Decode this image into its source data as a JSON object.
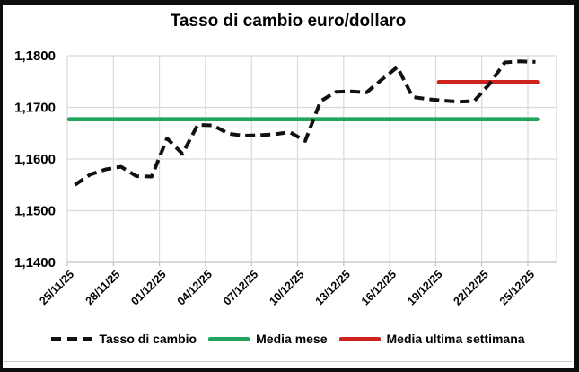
{
  "chart": {
    "title": "Tasso di cambio euro/dollaro"
  },
  "chart_data": {
    "type": "line",
    "title": "Tasso di cambio euro/dollaro",
    "xlabel": "",
    "ylabel": "",
    "ylim": [
      1.14,
      1.18
    ],
    "grid": true,
    "legend_position": "bottom",
    "dates": [
      "25/11/25",
      "26/11/25",
      "27/11/25",
      "28/11/25",
      "29/11/25",
      "30/11/25",
      "01/12/25",
      "02/12/25",
      "03/12/25",
      "04/12/25",
      "05/12/25",
      "06/12/25",
      "07/12/25",
      "08/12/25",
      "09/12/25",
      "10/12/25",
      "11/12/25",
      "12/12/25",
      "13/12/25",
      "14/12/25",
      "15/12/25",
      "16/12/25",
      "17/12/25",
      "18/12/25",
      "19/12/25",
      "20/12/25",
      "21/12/25",
      "22/12/25",
      "23/12/25",
      "24/12/25",
      "25/12/25"
    ],
    "x_tick_labels": [
      "25/11/25",
      "28/11/25",
      "01/12/25",
      "04/12/25",
      "07/12/25",
      "10/12/25",
      "13/12/25",
      "16/12/25",
      "19/12/25",
      "22/12/25",
      "25/12/25"
    ],
    "y_tick_labels": [
      "1,1800",
      "1,1700",
      "1,1600",
      "1,1500",
      "1,1400"
    ],
    "y_tick_values": [
      1.18,
      1.17,
      1.16,
      1.15,
      1.14
    ],
    "series": [
      {
        "name": "Tasso di cambio",
        "style": "dashed",
        "color": "#111111",
        "values": [
          1.155,
          1.157,
          1.158,
          1.1585,
          1.1567,
          1.1566,
          1.164,
          1.161,
          1.1666,
          1.1665,
          1.1649,
          1.1645,
          1.1646,
          1.1648,
          1.1652,
          1.1635,
          1.1712,
          1.173,
          1.1731,
          1.1729,
          1.1754,
          1.1778,
          1.172,
          1.1716,
          1.1713,
          1.1711,
          1.1712,
          1.1745,
          1.1787,
          1.1789,
          1.1788
        ]
      },
      {
        "name": "Media mese",
        "style": "solid",
        "color": "#20A45E",
        "value": 1.1677,
        "span": "full"
      },
      {
        "name": "Media ultima settimana",
        "style": "solid",
        "color": "#CE231D",
        "value": 1.1749,
        "span": "last_week"
      }
    ]
  },
  "legend": {
    "items": [
      {
        "label": "Tasso di cambio",
        "color": "#111111",
        "style": "dashed"
      },
      {
        "label": "Media mese",
        "color": "#20A45E",
        "style": "solid"
      },
      {
        "label": "Media ultima settimana",
        "color": "#CE231D",
        "style": "solid"
      }
    ]
  },
  "colors": {
    "gridline": "#d9d9d9",
    "axis_line": "#c0c0c0",
    "text": "#000000",
    "background": "#ffffff",
    "frame": "#0d0d0d"
  }
}
